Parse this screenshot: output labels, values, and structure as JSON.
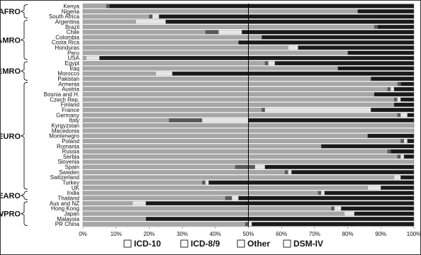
{
  "chart_data": {
    "type": "bar",
    "orientation": "horizontal",
    "stacked": true,
    "percent": true,
    "xlim": [
      0,
      100
    ],
    "xticks": [
      "0%",
      "10%",
      "20%",
      "30%",
      "40%",
      "50%",
      "60%",
      "70%",
      "80%",
      "90%",
      "100%"
    ],
    "reference_line": 50,
    "legend": {
      "placement": "bottom",
      "entries": [
        "ICD-10",
        "ICD-8/9",
        "Other",
        "DSM-IV"
      ]
    },
    "colors": {
      "ICD-10": "#a6a6a6",
      "ICD-8/9": "#595959",
      "Other": "#e6e6e6",
      "DSM-IV": "#1a1a1a"
    },
    "categories": [
      "Kenya",
      "Nigeria",
      "South Africa",
      "Argentina",
      "Brazil",
      "Chile",
      "Colombia",
      "Costa Rica",
      "Honduras",
      "Peru",
      "USA",
      "Egypt",
      "Iraq",
      "Morocco",
      "Pakistan",
      "Armenia",
      "Austria",
      "Bosnia and H.",
      "Czech Rep.",
      "Finland",
      "France",
      "Germany",
      "Italy",
      "Kyrgyzstan",
      "Macedonia",
      "Montenegro",
      "Poland",
      "Romania",
      "Russia",
      "Serbia",
      "Slovenia",
      "Spain",
      "Sweden",
      "Switzerland",
      "Turkey",
      "UK",
      "India",
      "Thailand",
      "Aus and NZ",
      "Hong Kong",
      "Japan",
      "Malaysia",
      "PR China"
    ],
    "groups": [
      {
        "name": "AFRO",
        "start": 0,
        "end": 2
      },
      {
        "name": "AMRO",
        "start": 3,
        "end": 10
      },
      {
        "name": "EMRO",
        "start": 11,
        "end": 14
      },
      {
        "name": "EURO",
        "start": 15,
        "end": 35
      },
      {
        "name": "SEARO",
        "start": 36,
        "end": 37
      },
      {
        "name": "WPRO",
        "start": 38,
        "end": 42
      }
    ],
    "series": [
      {
        "name": "ICD-10",
        "values": [
          7,
          83,
          20,
          16,
          88,
          37,
          54,
          47,
          62,
          80,
          1,
          55,
          77,
          22,
          87,
          95,
          92,
          88,
          94,
          94,
          54,
          95,
          26,
          100,
          100,
          86,
          96,
          72,
          92,
          95,
          100,
          46,
          61,
          94,
          36,
          86,
          71,
          43,
          15,
          75,
          79,
          19,
          49
        ]
      },
      {
        "name": "ICD-8/9",
        "values": [
          1,
          0,
          1,
          0,
          1,
          4,
          0,
          0,
          0,
          0,
          0,
          1,
          0,
          0,
          0,
          1,
          1,
          0,
          1,
          0,
          1,
          1,
          10,
          0,
          0,
          0,
          1,
          0,
          1,
          1,
          0,
          6,
          1,
          0,
          1,
          0,
          1,
          2,
          0,
          1,
          0,
          0,
          1
        ]
      },
      {
        "name": "Other",
        "values": [
          0,
          0,
          2,
          9,
          0,
          7,
          0,
          0,
          3,
          0,
          4,
          2,
          0,
          5,
          0,
          0,
          1,
          0,
          1,
          0,
          32,
          2,
          14,
          0,
          0,
          0,
          1,
          0,
          0,
          1,
          0,
          3,
          1,
          2,
          1,
          4,
          1,
          2,
          4,
          2,
          3,
          0,
          1
        ]
      },
      {
        "name": "DSM-IV",
        "values": [
          92,
          17,
          77,
          75,
          11,
          52,
          46,
          53,
          35,
          20,
          95,
          42,
          23,
          73,
          13,
          4,
          6,
          12,
          4,
          6,
          13,
          2,
          50,
          0,
          0,
          14,
          2,
          28,
          7,
          3,
          0,
          45,
          37,
          4,
          62,
          10,
          27,
          53,
          81,
          22,
          18,
          81,
          49
        ]
      }
    ]
  }
}
